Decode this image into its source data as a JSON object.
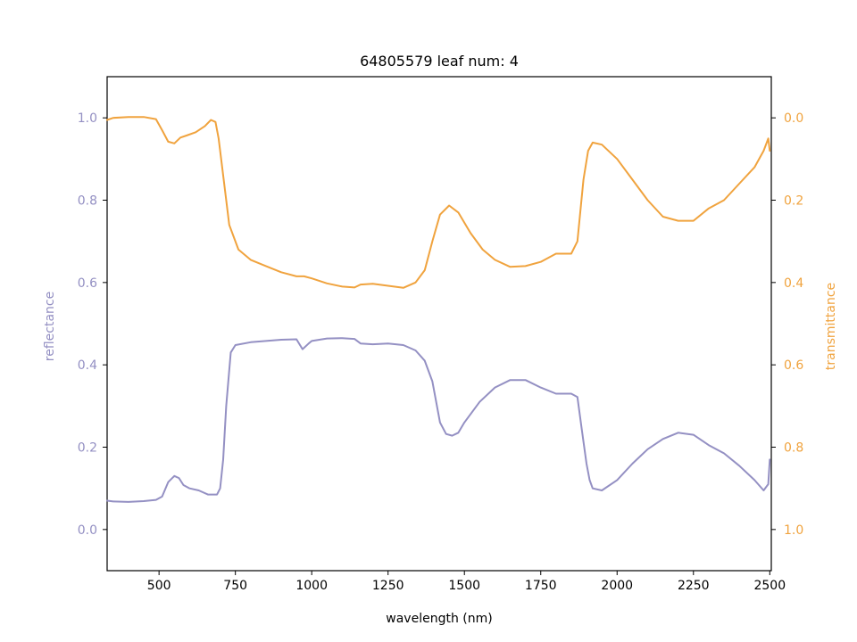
{
  "chart_data": {
    "type": "line",
    "title": "64805579 leaf num: 4",
    "xlabel": "wavelength (nm)",
    "xlim": [
      330,
      2505
    ],
    "x_ticks": [
      500,
      750,
      1000,
      1250,
      1500,
      1750,
      2000,
      2250,
      2500
    ],
    "left_axis": {
      "label": "reflectance",
      "ylim": [
        -0.1,
        1.1
      ],
      "ticks": [
        0.0,
        0.2,
        0.4,
        0.6,
        0.8,
        1.0
      ],
      "color": "#9490c3"
    },
    "right_axis": {
      "label": "transmittance",
      "ylim": [
        1.1,
        -0.1
      ],
      "inverted": true,
      "ticks": [
        0.0,
        0.2,
        0.4,
        0.6,
        0.8,
        1.0
      ],
      "color": "#f0a33e"
    },
    "grid": false,
    "legend": "none",
    "series": [
      {
        "axis": "left",
        "color": "#9490c3",
        "points": [
          [
            330,
            0.07
          ],
          [
            350,
            0.068
          ],
          [
            400,
            0.067
          ],
          [
            450,
            0.069
          ],
          [
            490,
            0.072
          ],
          [
            510,
            0.08
          ],
          [
            530,
            0.115
          ],
          [
            550,
            0.13
          ],
          [
            565,
            0.125
          ],
          [
            580,
            0.108
          ],
          [
            600,
            0.1
          ],
          [
            630,
            0.095
          ],
          [
            660,
            0.085
          ],
          [
            690,
            0.085
          ],
          [
            700,
            0.1
          ],
          [
            710,
            0.17
          ],
          [
            720,
            0.3
          ],
          [
            735,
            0.43
          ],
          [
            750,
            0.448
          ],
          [
            800,
            0.455
          ],
          [
            850,
            0.458
          ],
          [
            900,
            0.461
          ],
          [
            950,
            0.462
          ],
          [
            970,
            0.438
          ],
          [
            990,
            0.452
          ],
          [
            1000,
            0.458
          ],
          [
            1050,
            0.464
          ],
          [
            1100,
            0.465
          ],
          [
            1140,
            0.463
          ],
          [
            1160,
            0.452
          ],
          [
            1200,
            0.45
          ],
          [
            1250,
            0.452
          ],
          [
            1300,
            0.448
          ],
          [
            1340,
            0.435
          ],
          [
            1370,
            0.41
          ],
          [
            1395,
            0.36
          ],
          [
            1420,
            0.26
          ],
          [
            1440,
            0.232
          ],
          [
            1460,
            0.228
          ],
          [
            1480,
            0.235
          ],
          [
            1500,
            0.26
          ],
          [
            1550,
            0.31
          ],
          [
            1600,
            0.345
          ],
          [
            1650,
            0.363
          ],
          [
            1700,
            0.363
          ],
          [
            1750,
            0.345
          ],
          [
            1800,
            0.33
          ],
          [
            1850,
            0.33
          ],
          [
            1870,
            0.322
          ],
          [
            1885,
            0.24
          ],
          [
            1900,
            0.16
          ],
          [
            1910,
            0.12
          ],
          [
            1920,
            0.1
          ],
          [
            1950,
            0.095
          ],
          [
            2000,
            0.12
          ],
          [
            2050,
            0.16
          ],
          [
            2100,
            0.195
          ],
          [
            2150,
            0.22
          ],
          [
            2200,
            0.235
          ],
          [
            2250,
            0.23
          ],
          [
            2300,
            0.205
          ],
          [
            2350,
            0.185
          ],
          [
            2400,
            0.155
          ],
          [
            2450,
            0.12
          ],
          [
            2480,
            0.095
          ],
          [
            2495,
            0.11
          ],
          [
            2500,
            0.17
          ]
        ]
      },
      {
        "axis": "right",
        "color": "#f0a33e",
        "points": [
          [
            330,
            0.005
          ],
          [
            350,
            0.0
          ],
          [
            400,
            -0.002
          ],
          [
            450,
            -0.002
          ],
          [
            490,
            0.003
          ],
          [
            510,
            0.03
          ],
          [
            530,
            0.058
          ],
          [
            550,
            0.062
          ],
          [
            570,
            0.048
          ],
          [
            590,
            0.043
          ],
          [
            620,
            0.035
          ],
          [
            650,
            0.02
          ],
          [
            670,
            0.005
          ],
          [
            685,
            0.01
          ],
          [
            695,
            0.05
          ],
          [
            710,
            0.14
          ],
          [
            730,
            0.26
          ],
          [
            760,
            0.32
          ],
          [
            800,
            0.345
          ],
          [
            850,
            0.36
          ],
          [
            900,
            0.375
          ],
          [
            950,
            0.385
          ],
          [
            975,
            0.385
          ],
          [
            1000,
            0.39
          ],
          [
            1050,
            0.402
          ],
          [
            1100,
            0.41
          ],
          [
            1140,
            0.412
          ],
          [
            1160,
            0.405
          ],
          [
            1200,
            0.403
          ],
          [
            1250,
            0.408
          ],
          [
            1300,
            0.413
          ],
          [
            1340,
            0.4
          ],
          [
            1370,
            0.37
          ],
          [
            1395,
            0.3
          ],
          [
            1420,
            0.235
          ],
          [
            1450,
            0.213
          ],
          [
            1480,
            0.23
          ],
          [
            1520,
            0.28
          ],
          [
            1560,
            0.32
          ],
          [
            1600,
            0.345
          ],
          [
            1650,
            0.362
          ],
          [
            1700,
            0.36
          ],
          [
            1750,
            0.35
          ],
          [
            1800,
            0.33
          ],
          [
            1850,
            0.33
          ],
          [
            1870,
            0.3
          ],
          [
            1890,
            0.15
          ],
          [
            1905,
            0.08
          ],
          [
            1920,
            0.06
          ],
          [
            1950,
            0.065
          ],
          [
            2000,
            0.1
          ],
          [
            2050,
            0.15
          ],
          [
            2100,
            0.2
          ],
          [
            2150,
            0.24
          ],
          [
            2200,
            0.25
          ],
          [
            2250,
            0.25
          ],
          [
            2300,
            0.22
          ],
          [
            2350,
            0.2
          ],
          [
            2400,
            0.16
          ],
          [
            2450,
            0.12
          ],
          [
            2480,
            0.08
          ],
          [
            2495,
            0.05
          ],
          [
            2500,
            0.08
          ]
        ]
      }
    ]
  }
}
